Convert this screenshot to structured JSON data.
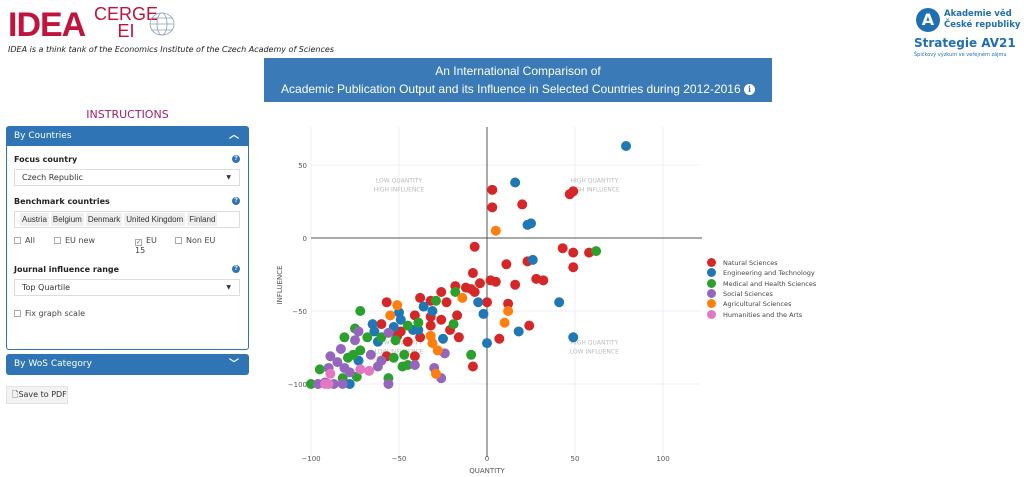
{
  "header": {
    "logo_idea": "IDEA",
    "logo_cerge": "CERGE",
    "logo_ei": "EI",
    "tagline": "IDEA is a think tank of the Economics Institute of the Czech Academy of Sciences",
    "av_logo_line1": "Akademie věd",
    "av_logo_line2": "České republiky",
    "av_strategy": "Strategie AV21",
    "av_subtitle": "Špičkový výzkum ve veřejném zájmu"
  },
  "title": {
    "line1": "An International Comparison of",
    "line2": "Academic Publication Output and its Influence in Selected Countries during 2012-2016",
    "info_icon": "info-icon"
  },
  "sidebar": {
    "instructions": "INSTRUCTIONS",
    "by_countries": "By Countries",
    "focus_country_label": "Focus country",
    "focus_country_value": "Czech Republic",
    "benchmark_label": "Benchmark countries",
    "benchmark_countries": [
      "Austria",
      "Belgium",
      "Denmark",
      "United Kingdom",
      "Finland"
    ],
    "checkboxes": [
      {
        "label": "All",
        "checked": false
      },
      {
        "label": "EU new",
        "checked": false
      },
      {
        "label": "EU 15",
        "checked": true
      },
      {
        "label": "Non EU",
        "checked": false
      }
    ],
    "journal_label": "Journal influence range",
    "journal_value": "Top Quartile",
    "fix_scale_label": "Fix graph scale",
    "by_wos": "By WoS Category",
    "save_pdf": "Save to PDF"
  },
  "chart_data": {
    "type": "scatter",
    "xlabel": "QUANTITY",
    "ylabel": "INFLUENCE",
    "xlim": [
      -100,
      121
    ],
    "ylim": [
      -150,
      76
    ],
    "xticks": [
      -100,
      -50,
      0,
      50,
      100
    ],
    "yticks": [
      50,
      0,
      -50,
      -100
    ],
    "xtick_labels": [
      "−100",
      "−50",
      "0",
      "50",
      "100"
    ],
    "ytick_labels": [
      "50",
      "0",
      "−50",
      "−100"
    ],
    "quadrant_labels": [
      {
        "text": [
          "LOW QUANTITY",
          "HIGH INFLUENCE"
        ],
        "x": -50,
        "y": 38
      },
      {
        "text": [
          "HIGH QUANTITY",
          "HIGH INFLUENCE"
        ],
        "x": 61,
        "y": 38
      },
      {
        "text": [
          "LOW QUANTITY",
          "LOW INFLUENCE"
        ],
        "x": -50,
        "y": -73
      },
      {
        "text": [
          "HIGH QUANTITY",
          "LOW INFLUENCE"
        ],
        "x": 61,
        "y": -73
      }
    ],
    "legend_position": "right",
    "series": [
      {
        "name": "Natural Sciences",
        "color": "#d62728",
        "points": [
          [
            3,
            33
          ],
          [
            3,
            21
          ],
          [
            20,
            23
          ],
          [
            47,
            30
          ],
          [
            49,
            32
          ],
          [
            -7,
            -6
          ],
          [
            43,
            -7
          ],
          [
            49,
            -10
          ],
          [
            58,
            -10
          ],
          [
            49,
            -20
          ],
          [
            11,
            -18
          ],
          [
            23,
            -16
          ],
          [
            -8,
            -24
          ],
          [
            2,
            -29
          ],
          [
            5,
            -30
          ],
          [
            -4,
            -31
          ],
          [
            16,
            -32
          ],
          [
            28,
            -28
          ],
          [
            32,
            -29
          ],
          [
            -18,
            -33
          ],
          [
            -12,
            -34
          ],
          [
            -9,
            -35
          ],
          [
            -7,
            -37
          ],
          [
            -26,
            -37
          ],
          [
            -38,
            -41
          ],
          [
            -32,
            -43
          ],
          [
            -23,
            -44
          ],
          [
            0,
            -44
          ],
          [
            12,
            -45
          ],
          [
            -57,
            -44
          ],
          [
            -32,
            -54
          ],
          [
            -26,
            -56
          ],
          [
            -17,
            -53
          ],
          [
            -41,
            -53
          ],
          [
            -21,
            -63
          ],
          [
            -16,
            -68
          ],
          [
            -32,
            -60
          ],
          [
            24,
            -60
          ],
          [
            7,
            -69
          ],
          [
            -60,
            -59
          ],
          [
            -49,
            -64
          ],
          [
            -45,
            -71
          ],
          [
            -38,
            -68
          ],
          [
            -57,
            -81
          ],
          [
            -41,
            -81
          ],
          [
            -8,
            -88
          ],
          [
            -51,
            -67
          ]
        ]
      },
      {
        "name": "Engineering and Technology",
        "color": "#1f77b4",
        "points": [
          [
            79,
            63
          ],
          [
            16,
            38
          ],
          [
            23,
            9
          ],
          [
            25,
            10
          ],
          [
            26,
            -15
          ],
          [
            41,
            -44
          ],
          [
            49,
            -68
          ],
          [
            -5,
            -44
          ],
          [
            -2,
            -52
          ],
          [
            0,
            -72
          ],
          [
            18,
            -64
          ],
          [
            -25,
            -69
          ],
          [
            -36,
            -47
          ],
          [
            -31,
            -50
          ],
          [
            -50,
            -51
          ],
          [
            -65,
            -59
          ],
          [
            -64,
            -64
          ],
          [
            -49,
            -56
          ],
          [
            -42,
            -63
          ],
          [
            -39,
            -63
          ],
          [
            -78,
            -100
          ],
          [
            -73,
            -84
          ],
          [
            -62,
            -71
          ],
          [
            -53,
            -61
          ]
        ]
      },
      {
        "name": "Medical and Health Sciences",
        "color": "#2ca02c",
        "points": [
          [
            62,
            -9
          ],
          [
            -29,
            -43
          ],
          [
            -18,
            -37
          ],
          [
            -72,
            -50
          ],
          [
            -39,
            -58
          ],
          [
            -19,
            -59
          ],
          [
            -9,
            -80
          ],
          [
            -75,
            -62
          ],
          [
            -81,
            -68
          ],
          [
            -68,
            -68
          ],
          [
            -60,
            -68
          ],
          [
            -52,
            -70
          ],
          [
            -47,
            -80
          ],
          [
            -48,
            -88
          ],
          [
            -45,
            -87
          ],
          [
            -56,
            -96
          ],
          [
            -95,
            -90
          ],
          [
            -100,
            -100
          ],
          [
            -82,
            -96
          ],
          [
            -74,
            -95
          ],
          [
            -72,
            -77
          ],
          [
            -76,
            -80
          ],
          [
            -53,
            -82
          ],
          [
            -45,
            -60
          ],
          [
            -79,
            -82
          ]
        ]
      },
      {
        "name": "Social Sciences",
        "color": "#9467bd",
        "points": [
          [
            -73,
            -64
          ],
          [
            -75,
            -70
          ],
          [
            -83,
            -76
          ],
          [
            -89,
            -81
          ],
          [
            -85,
            -85
          ],
          [
            -81,
            -89
          ],
          [
            -92,
            -99
          ],
          [
            -87,
            -100
          ],
          [
            -82,
            -100
          ],
          [
            -96,
            -100
          ],
          [
            -66,
            -80
          ],
          [
            -62,
            -88
          ],
          [
            -60,
            -84
          ],
          [
            -56,
            -100
          ],
          [
            -41,
            -87
          ],
          [
            -30,
            -89
          ],
          [
            -26,
            -96
          ],
          [
            -24,
            -79
          ],
          [
            -56,
            -65
          ],
          [
            -90,
            -89
          ],
          [
            -78,
            -92
          ]
        ]
      },
      {
        "name": "Agricultural Sciences",
        "color": "#ff7f0e",
        "points": [
          [
            5,
            5
          ],
          [
            -14,
            -41
          ],
          [
            -51,
            -46
          ],
          [
            -55,
            -53
          ],
          [
            12,
            -50
          ],
          [
            10,
            -58
          ],
          [
            -32,
            -67
          ],
          [
            -31,
            -72
          ],
          [
            -28,
            -77
          ],
          [
            -29,
            -93
          ]
        ]
      },
      {
        "name": "Humanities and the Arts",
        "color": "#e377c2",
        "points": [
          [
            -89,
            -93
          ],
          [
            -90,
            -100
          ],
          [
            -72,
            -90
          ],
          [
            -67,
            -91
          ],
          [
            -92,
            -100
          ]
        ]
      }
    ]
  }
}
